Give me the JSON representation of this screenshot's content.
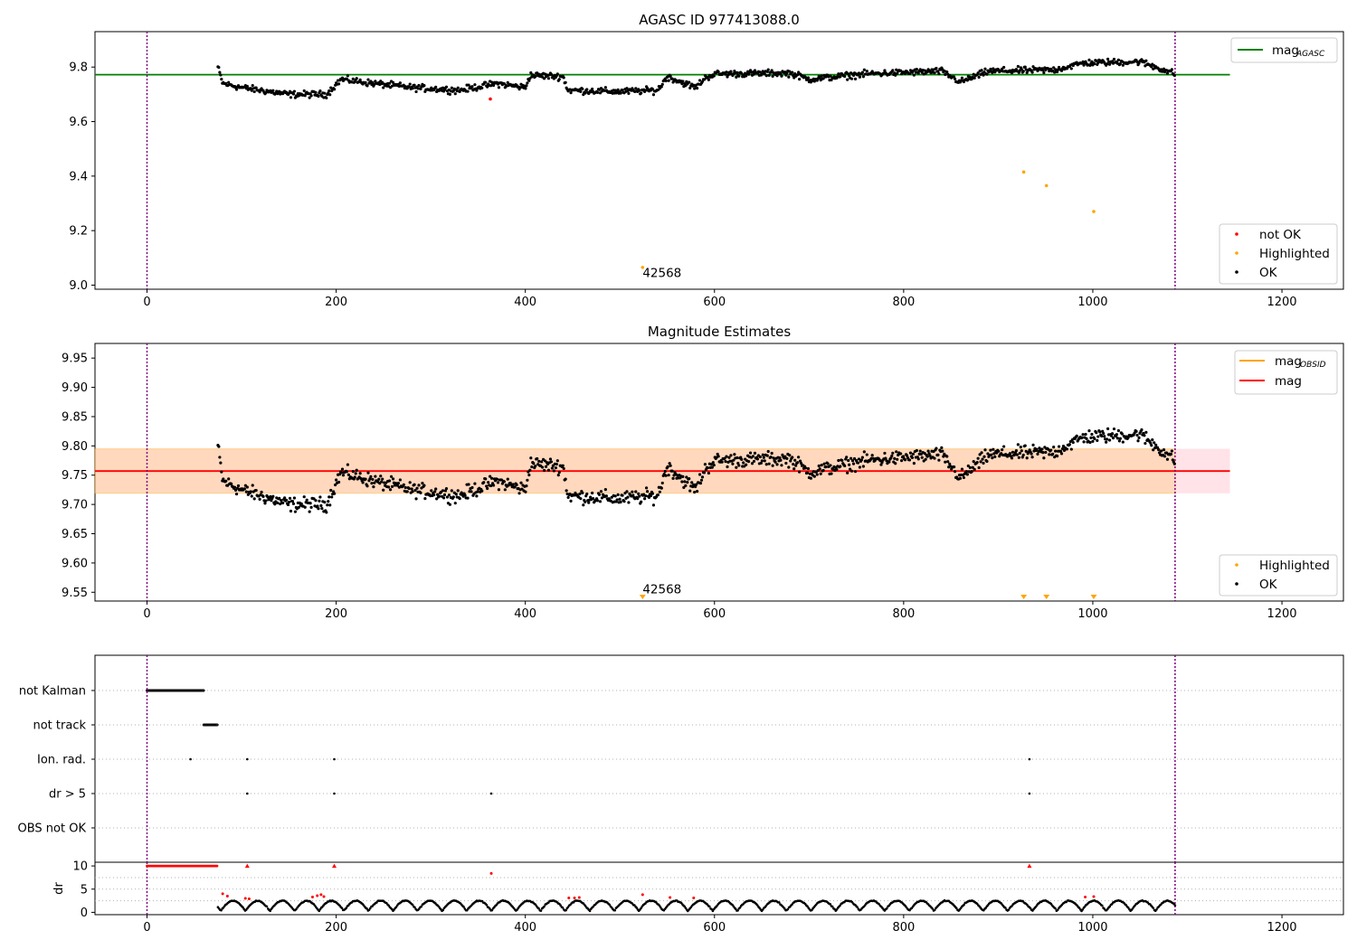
{
  "figure": {
    "chart_data": [
      {
        "type": "scatter",
        "title": "AGASC ID 977413088.0",
        "xlim": [
          -55,
          1265
        ],
        "ylim": [
          8.985,
          9.93
        ],
        "xticks": [
          0,
          200,
          400,
          600,
          800,
          1000,
          1200
        ],
        "yticks": [
          9.0,
          9.2,
          9.4,
          9.6,
          9.8
        ],
        "ytick_labels": [
          "9.0",
          "9.2",
          "9.4",
          "9.6",
          "9.8"
        ],
        "vlines_x": [
          0,
          1087
        ],
        "hline": {
          "y": 9.772,
          "x_range": [
            -55,
            1145
          ],
          "color": "#008000"
        },
        "ok_series": {
          "name": "OK",
          "color": "#000000",
          "x_range": [
            75,
            1087
          ],
          "count": 1080
        },
        "highlighted": {
          "name": "Highlighted",
          "color": "#ffa500",
          "points": [
            [
              524,
              9.065
            ],
            [
              927,
              9.415
            ],
            [
              951,
              9.365
            ],
            [
              1001,
              9.27
            ]
          ]
        },
        "not_ok": {
          "name": "not OK",
          "color": "#ff0000",
          "points": [
            [
              363,
              9.683
            ]
          ]
        },
        "annotation": {
          "text": "42568",
          "x": 524,
          "y": 9.03
        },
        "legend_top": {
          "loc": "upper-right",
          "entries": [
            {
              "label": "mag",
              "sub": "AGASC",
              "color": "#008000"
            }
          ]
        },
        "legend_bottom": {
          "loc": "lower-right",
          "entries": [
            {
              "label": "not OK",
              "color": "#ff0000"
            },
            {
              "label": "Highlighted",
              "color": "#ffa500"
            },
            {
              "label": "OK",
              "color": "#000000"
            }
          ]
        }
      },
      {
        "type": "scatter",
        "title": "Magnitude Estimates",
        "xlim": [
          -55,
          1265
        ],
        "ylim": [
          9.535,
          9.975
        ],
        "xticks": [
          0,
          200,
          400,
          600,
          800,
          1000,
          1200
        ],
        "yticks": [
          9.55,
          9.6,
          9.65,
          9.7,
          9.75,
          9.8,
          9.85,
          9.9,
          9.95
        ],
        "ytick_labels": [
          "9.55",
          "9.60",
          "9.65",
          "9.70",
          "9.75",
          "9.80",
          "9.85",
          "9.90",
          "9.95"
        ],
        "vlines_x": [
          0,
          1087
        ],
        "band_pink": {
          "y_range": [
            9.719,
            9.795
          ],
          "x_range": [
            -55,
            1145
          ],
          "color": "#ffc0cb"
        },
        "band_orange": {
          "y_range": [
            9.719,
            9.795
          ],
          "x_range": [
            -55,
            1087
          ],
          "color": "#ffa500"
        },
        "mag_line": {
          "y": 9.757,
          "x_range": [
            -55,
            1145
          ],
          "color": "#ff0000"
        },
        "obsid_line_color": "#ffa500",
        "ok_series": {
          "name": "OK",
          "color": "#000000",
          "x_range": [
            75,
            1087
          ],
          "count": 1080
        },
        "highlighted_markers": {
          "name": "Highlighted",
          "color": "#ffa500",
          "x": [
            524,
            927,
            951,
            1001
          ]
        },
        "annotation": {
          "text": "42568",
          "x": 524,
          "y": 9.548
        },
        "legend_top": {
          "loc": "upper-right",
          "entries": [
            {
              "label": "mag",
              "sub": "OBSID",
              "color": "#ffa500"
            },
            {
              "label": "mag",
              "sub": "",
              "color": "#ff0000"
            }
          ]
        },
        "legend_bottom": {
          "loc": "lower-right",
          "entries": [
            {
              "label": "Highlighted",
              "color": "#ffa500"
            },
            {
              "label": "OK",
              "color": "#000000"
            }
          ]
        }
      },
      {
        "type": "scatter",
        "title": "",
        "xlim": [
          -55,
          1265
        ],
        "categories": [
          "not Kalman",
          "not track",
          "Ion. rad.",
          "dr > 5",
          "OBS not OK"
        ],
        "flags": {
          "not Kalman": {
            "x_range": [
              0,
              60
            ]
          },
          "not track": {
            "x_range": [
              60,
              75
            ]
          },
          "Ion. rad.": {
            "x": [
              46,
              106,
              198,
              933
            ]
          },
          "dr > 5": {
            "x": [
              106,
              198,
              364,
              933
            ]
          },
          "OBS not OK": {
            "x": []
          }
        },
        "vlines_x": [
          0,
          1087
        ]
      },
      {
        "type": "scatter",
        "title": "",
        "ylabel": "dr",
        "xlim": [
          -55,
          1265
        ],
        "ylim": [
          -0.5,
          10.8
        ],
        "xticks": [
          0,
          200,
          400,
          600,
          800,
          1000,
          1200
        ],
        "yticks": [
          0,
          5,
          10
        ],
        "ytick_labels": [
          "0",
          "5",
          "10"
        ],
        "vlines_x": [
          0,
          1087
        ],
        "red_points": [
          [
            80,
            4.0
          ],
          [
            85,
            3.5
          ],
          [
            104,
            3.0
          ],
          [
            108,
            2.9
          ],
          [
            175,
            3.3
          ],
          [
            180,
            3.6
          ],
          [
            184,
            3.8
          ],
          [
            187,
            3.4
          ],
          [
            364,
            8.4
          ],
          [
            446,
            3.1
          ],
          [
            452,
            3.1
          ],
          [
            457,
            3.2
          ],
          [
            524,
            3.8
          ],
          [
            553,
            3.2
          ],
          [
            578,
            3.1
          ],
          [
            992,
            3.3
          ],
          [
            1001,
            3.4
          ]
        ],
        "red_triangles_x": [
          106,
          198,
          933
        ],
        "cap_value": 10
      }
    ]
  }
}
